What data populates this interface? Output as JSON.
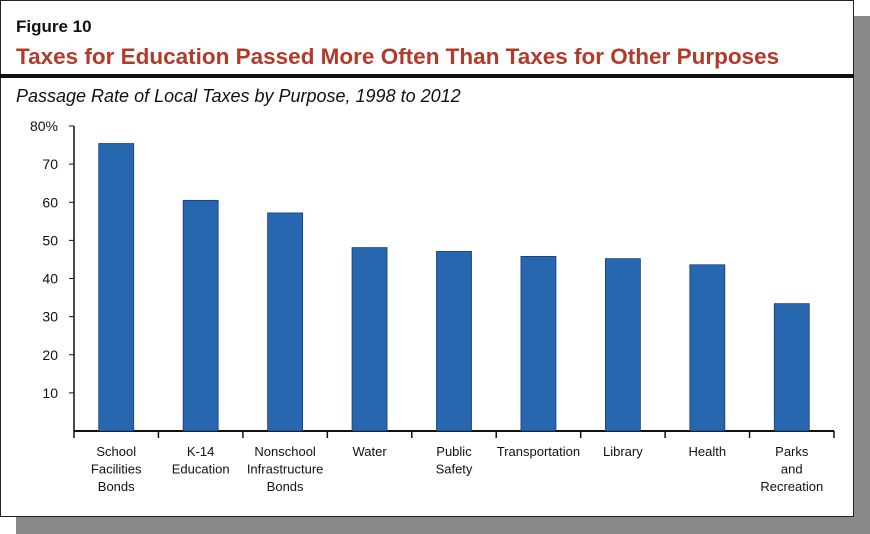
{
  "figure_label": "Figure 10",
  "title": "Taxes for Education Passed More Often Than Taxes for Other Purposes",
  "subtitle": "Passage Rate of Local Taxes by Purpose, 1998 to 2012",
  "chart_data": {
    "type": "bar",
    "title": "Taxes for Education Passed More Often Than Taxes for Other Purposes",
    "subtitle": "Passage Rate of Local Taxes by Purpose, 1998 to 2012",
    "categories": [
      "School Facilities Bonds",
      "K-14 Education",
      "Nonschool Infrastructure Bonds",
      "Water",
      "Public Safety",
      "Transportation",
      "Library",
      "Health",
      "Parks and Recreation"
    ],
    "category_lines": [
      [
        "School",
        "Facilities",
        "Bonds"
      ],
      [
        "K-14",
        "Education"
      ],
      [
        "Nonschool",
        "Infrastructure",
        "Bonds"
      ],
      [
        "Water"
      ],
      [
        "Public",
        "Safety"
      ],
      [
        "Transportation"
      ],
      [
        "Library"
      ],
      [
        "Health"
      ],
      [
        "Parks",
        "and",
        "Recreation"
      ]
    ],
    "values": [
      75.4,
      60.5,
      57.2,
      48.1,
      47.1,
      45.8,
      45.2,
      43.6,
      33.4
    ],
    "ylim": [
      0,
      80
    ],
    "yticks": [
      10,
      20,
      30,
      40,
      50,
      60,
      70,
      80
    ],
    "ytick_labels": [
      "10",
      "20",
      "30",
      "40",
      "50",
      "60",
      "70",
      "80%"
    ],
    "xlabel": "",
    "ylabel": "",
    "grid": false,
    "bar_color": "#2767b0"
  }
}
